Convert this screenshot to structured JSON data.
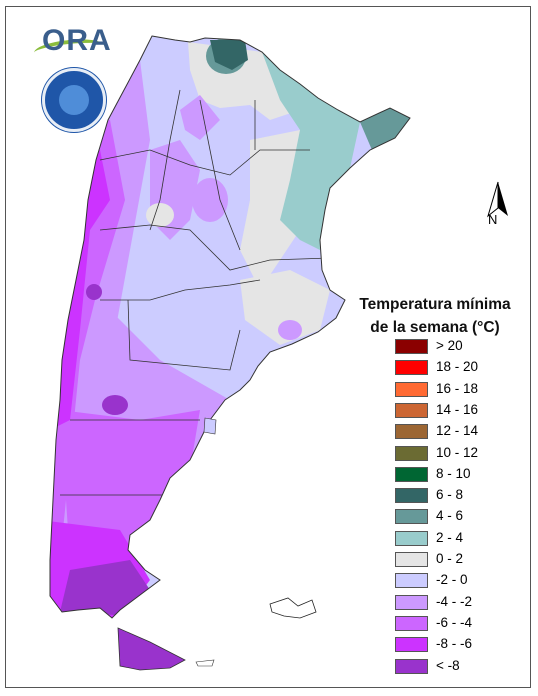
{
  "branding": {
    "logo_text": "ORA",
    "seal_icon": "inta-seal-icon"
  },
  "north_arrow": {
    "label": "N"
  },
  "legend": {
    "title_line1": "Temperatura mínima",
    "title_line2": "de la semana (°C)",
    "items": [
      {
        "label": "> 20",
        "color": "#8b0000"
      },
      {
        "label": "18 - 20",
        "color": "#ff0000"
      },
      {
        "label": "16 - 18",
        "color": "#ff6a33"
      },
      {
        "label": "14 - 16",
        "color": "#cc6633"
      },
      {
        "label": "12 - 14",
        "color": "#9c6633"
      },
      {
        "label": "10 - 12",
        "color": "#6b6b33"
      },
      {
        "label": "8 - 10",
        "color": "#006633"
      },
      {
        "label": "6 - 8",
        "color": "#336666"
      },
      {
        "label": "4 - 6",
        "color": "#669999"
      },
      {
        "label": "2 - 4",
        "color": "#99cccc"
      },
      {
        "label": "0 - 2",
        "color": "#e5e5e5"
      },
      {
        "label": "-2 - 0",
        "color": "#ccccff"
      },
      {
        "label": "-4 - -2",
        "color": "#cc99ff"
      },
      {
        "label": "-6 - -4",
        "color": "#cc66ff"
      },
      {
        "label": "-8 - -6",
        "color": "#cc33ff"
      },
      {
        "label": "< -8",
        "color": "#9933cc"
      }
    ]
  }
}
